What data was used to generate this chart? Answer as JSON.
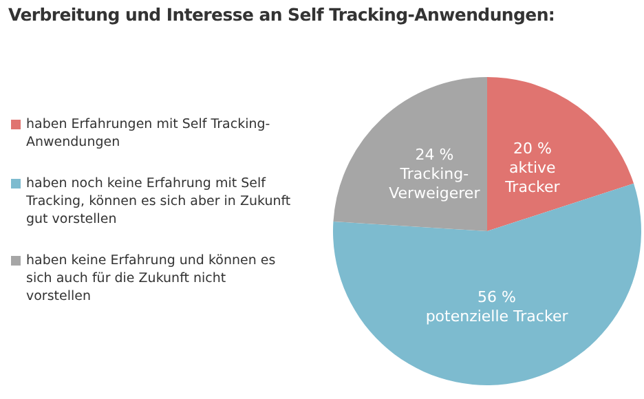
{
  "chart_data": {
    "type": "pie",
    "title": "Verbreitung und Interesse an Self Tracking-Anwendungen:",
    "categories": [
      "haben Erfahrungen mit Self Tracking-Anwendungen",
      "haben noch keine Erfahrung mit Self Tracking, können es sich aber in Zukunft gut vorstellen",
      "haben keine Erfahrung und können es sich auch für die Zukunft nicht vorstellen"
    ],
    "values": [
      20,
      56,
      24
    ],
    "colors": [
      "#e07470",
      "#7dbbcf",
      "#a6a6a6"
    ],
    "value_labels": [
      "20 %\naktive\nTracker",
      "56 %\npotenzielle Tracker",
      "24 %\nTracking-\nVerweigerer"
    ],
    "legend": "left"
  }
}
